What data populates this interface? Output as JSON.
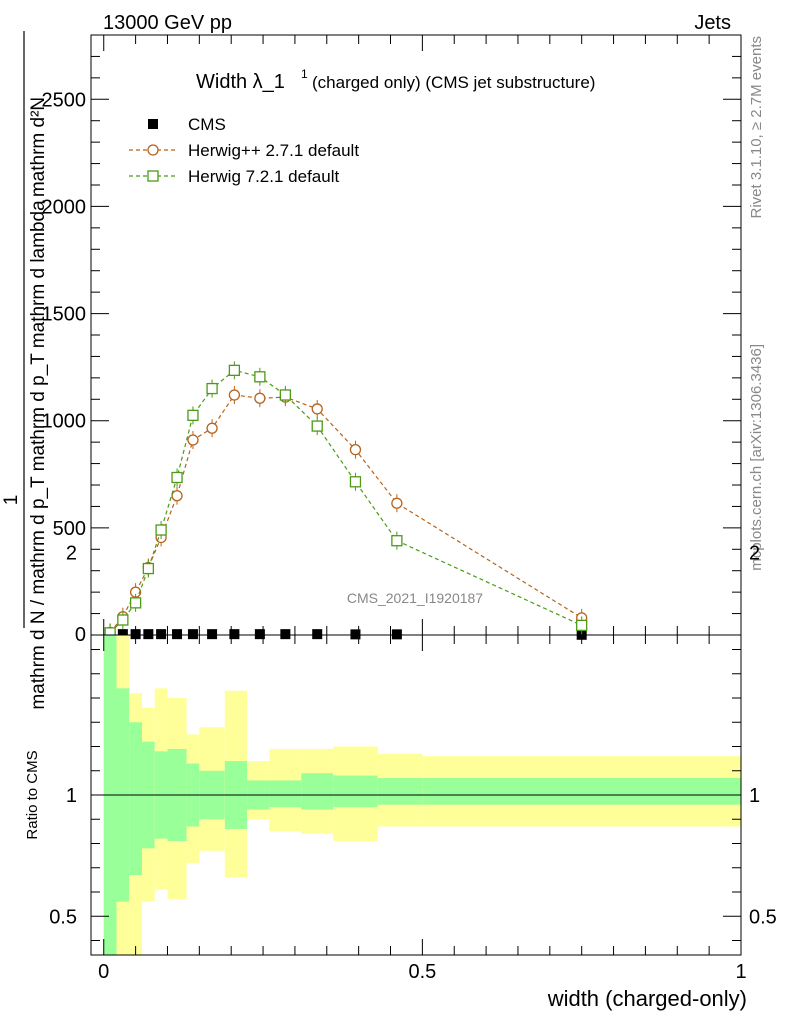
{
  "header": {
    "left": "13000 GeV pp",
    "right": "Jets"
  },
  "side": {
    "rivet": "Rivet 3.1.10, ≥ 2.7M events",
    "mcplots": "mcplots.cern.ch [arXiv:1306.3436]"
  },
  "chart_data": [
    {
      "type": "line",
      "title": "Width λ_1¹ (charged only) (CMS jet substructure)",
      "title_main": "Width λ_1",
      "title_sup": "1",
      "title_rest": "(charged only) (CMS jet substructure)",
      "watermark": "CMS_2021_I1920187",
      "ylabel_lines": [
        "1",
        "mathrm d N / mathrm d p_T mathrm d p_T mathrm d lambda",
        "mathrm d²N"
      ],
      "ylabel_top_line": "mathrm d²N",
      "ylabel_bottom_line": "mathrm d N / mathrm d p_T mathrm d p_T mathrm d lambda",
      "ylabel_numerator": "1",
      "xlim": [
        -0.02,
        1.0
      ],
      "ylim": [
        0,
        2800
      ],
      "y_ticks": [
        "500",
        "1000",
        "1500",
        "2000",
        "2500"
      ],
      "legend_position": "top-left",
      "series": [
        {
          "name": "CMS",
          "marker": "square-filled",
          "color": "#000000",
          "x": [
            0.01,
            0.03,
            0.05,
            0.07,
            0.09,
            0.115,
            0.14,
            0.17,
            0.205,
            0.245,
            0.285,
            0.335,
            0.395,
            0.46,
            0.75
          ],
          "y": [
            3,
            4,
            4,
            4,
            4,
            4,
            4,
            4,
            4,
            4,
            4,
            4,
            3,
            3,
            1
          ]
        },
        {
          "name": "Herwig++ 2.7.1 default",
          "marker": "circle-open",
          "color": "#b8621b",
          "x": [
            0.01,
            0.03,
            0.05,
            0.07,
            0.09,
            0.115,
            0.14,
            0.17,
            0.205,
            0.245,
            0.285,
            0.335,
            0.395,
            0.46,
            0.75
          ],
          "y": [
            12,
            85,
            200,
            315,
            455,
            650,
            910,
            965,
            1120,
            1105,
            1110,
            1055,
            865,
            615,
            80
          ]
        },
        {
          "name": "Herwig 7.2.1 default",
          "marker": "square-open",
          "color": "#4c9a16",
          "x": [
            0.01,
            0.03,
            0.05,
            0.07,
            0.09,
            0.115,
            0.14,
            0.17,
            0.205,
            0.245,
            0.285,
            0.335,
            0.395,
            0.46,
            0.75
          ],
          "y": [
            10,
            70,
            150,
            310,
            490,
            735,
            1025,
            1150,
            1235,
            1205,
            1120,
            975,
            715,
            440,
            45
          ]
        }
      ]
    },
    {
      "type": "area",
      "ylabel": "Ratio to CMS",
      "xlabel": "width (charged-only)",
      "xlim": [
        -0.02,
        1.0
      ],
      "ylim": [
        0.34,
        2.24
      ],
      "x_ticks": [
        "0",
        "0.5",
        "1"
      ],
      "y_ticks": [
        "0.5",
        "1",
        "2"
      ],
      "reference_line": 1,
      "band_colors": {
        "inner": "#99ff99",
        "outer": "#ffff99"
      },
      "bins": {
        "edges": [
          0.0,
          0.02,
          0.04,
          0.06,
          0.08,
          0.1,
          0.13,
          0.15,
          0.19,
          0.225,
          0.26,
          0.31,
          0.36,
          0.43,
          0.5,
          1.0
        ],
        "inner_low": [
          0.3,
          0.56,
          0.67,
          0.78,
          0.82,
          0.81,
          0.87,
          0.9,
          0.86,
          0.94,
          0.95,
          0.94,
          0.95,
          0.96,
          0.96
        ],
        "inner_high": [
          2.3,
          1.44,
          1.3,
          1.22,
          1.18,
          1.19,
          1.13,
          1.1,
          1.14,
          1.06,
          1.06,
          1.09,
          1.08,
          1.07,
          1.07
        ],
        "outer_low": [
          0.3,
          0.3,
          0.32,
          0.56,
          0.61,
          0.57,
          0.72,
          0.77,
          0.66,
          0.9,
          0.85,
          0.84,
          0.81,
          0.87,
          0.87
        ],
        "outer_high": [
          2.3,
          1.7,
          1.42,
          1.36,
          1.44,
          1.4,
          1.25,
          1.28,
          1.43,
          1.14,
          1.19,
          1.19,
          1.2,
          1.17,
          1.16
        ]
      }
    }
  ]
}
